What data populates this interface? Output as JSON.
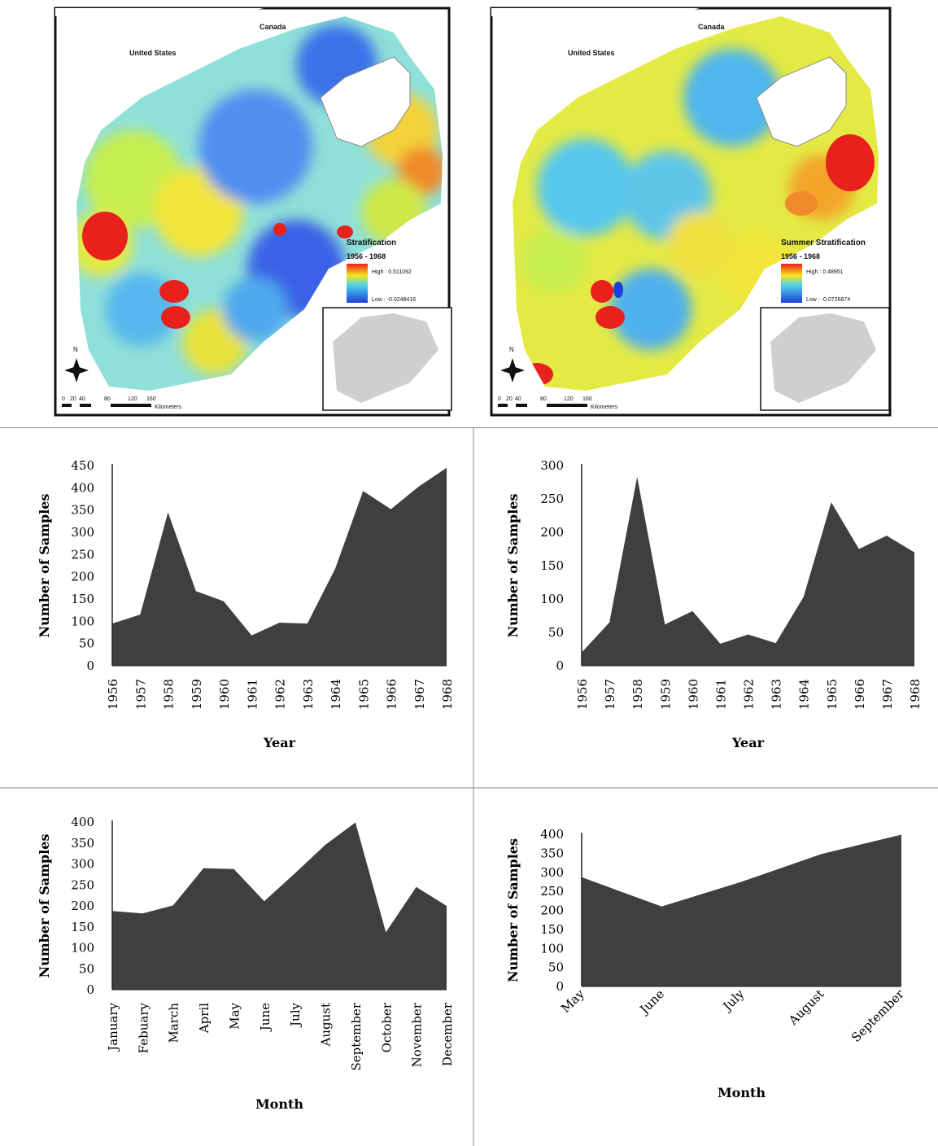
{
  "maps": [
    {
      "country_labels": [
        "United States",
        "Canada"
      ],
      "legend_title": "Stratification",
      "legend_period": "1956 - 1968",
      "legend_high": "High : 0.511092",
      "legend_low": "Low : -0.0248416",
      "north": "N",
      "scale_numbers": [
        "0",
        "20",
        "40",
        "80",
        "120",
        "160"
      ],
      "scale_unit": "Kilometers"
    },
    {
      "country_labels": [
        "United States",
        "Canada"
      ],
      "legend_title": "Summer Stratification",
      "legend_period": "1956 - 1968",
      "legend_high": "High : 0.48951",
      "legend_low": "Low : -0.0726874",
      "north": "N",
      "scale_numbers": [
        "0",
        "20",
        "40",
        "80",
        "120",
        "160"
      ],
      "scale_unit": "Kilometers"
    }
  ],
  "colors": {
    "area_fill": "#3f3f3f",
    "high": "#e8211c",
    "low": "#1f3fdb",
    "land": "#ffffff",
    "nodata": "#cfcfcf"
  },
  "chart_data": [
    {
      "type": "area",
      "xlabel": "Year",
      "ylabel": "Number of Samples",
      "categories": [
        "1956",
        "1957",
        "1958",
        "1959",
        "1960",
        "1961",
        "1962",
        "1963",
        "1964",
        "1965",
        "1966",
        "1967",
        "1968"
      ],
      "values": [
        95,
        115,
        345,
        168,
        145,
        68,
        97,
        95,
        218,
        393,
        352,
        403,
        445
      ],
      "yticks": [
        0,
        50,
        100,
        150,
        200,
        250,
        300,
        350,
        400,
        450
      ],
      "ylim": [
        0,
        450
      ]
    },
    {
      "type": "area",
      "xlabel": "Year",
      "ylabel": "Number of Samples",
      "categories": [
        "1956",
        "1957",
        "1958",
        "1959",
        "1960",
        "1961",
        "1962",
        "1963",
        "1964",
        "1965",
        "1966",
        "1967",
        "1968"
      ],
      "values": [
        20,
        65,
        283,
        62,
        82,
        33,
        47,
        34,
        103,
        245,
        175,
        195,
        170
      ],
      "yticks": [
        0,
        50,
        100,
        150,
        200,
        250,
        300
      ],
      "ylim": [
        0,
        300
      ]
    },
    {
      "type": "area",
      "xlabel": "Month",
      "ylabel": "Number of Samples",
      "categories": [
        "January",
        "Febuary",
        "March",
        "April",
        "May",
        "June",
        "July",
        "August",
        "September",
        "October",
        "November",
        "December"
      ],
      "values": [
        188,
        182,
        201,
        290,
        288,
        211,
        277,
        345,
        399,
        137,
        245,
        200
      ],
      "yticks": [
        0,
        50,
        100,
        150,
        200,
        250,
        300,
        350,
        400
      ],
      "ylim": [
        0,
        400
      ]
    },
    {
      "type": "area",
      "xlabel": "Month",
      "ylabel": "Number of Samples",
      "categories": [
        "May",
        "June",
        "July",
        "August",
        "September"
      ],
      "values": [
        287,
        210,
        275,
        348,
        399
      ],
      "yticks": [
        0,
        50,
        100,
        150,
        200,
        250,
        300,
        350,
        400
      ],
      "ylim": [
        0,
        400
      ]
    }
  ]
}
